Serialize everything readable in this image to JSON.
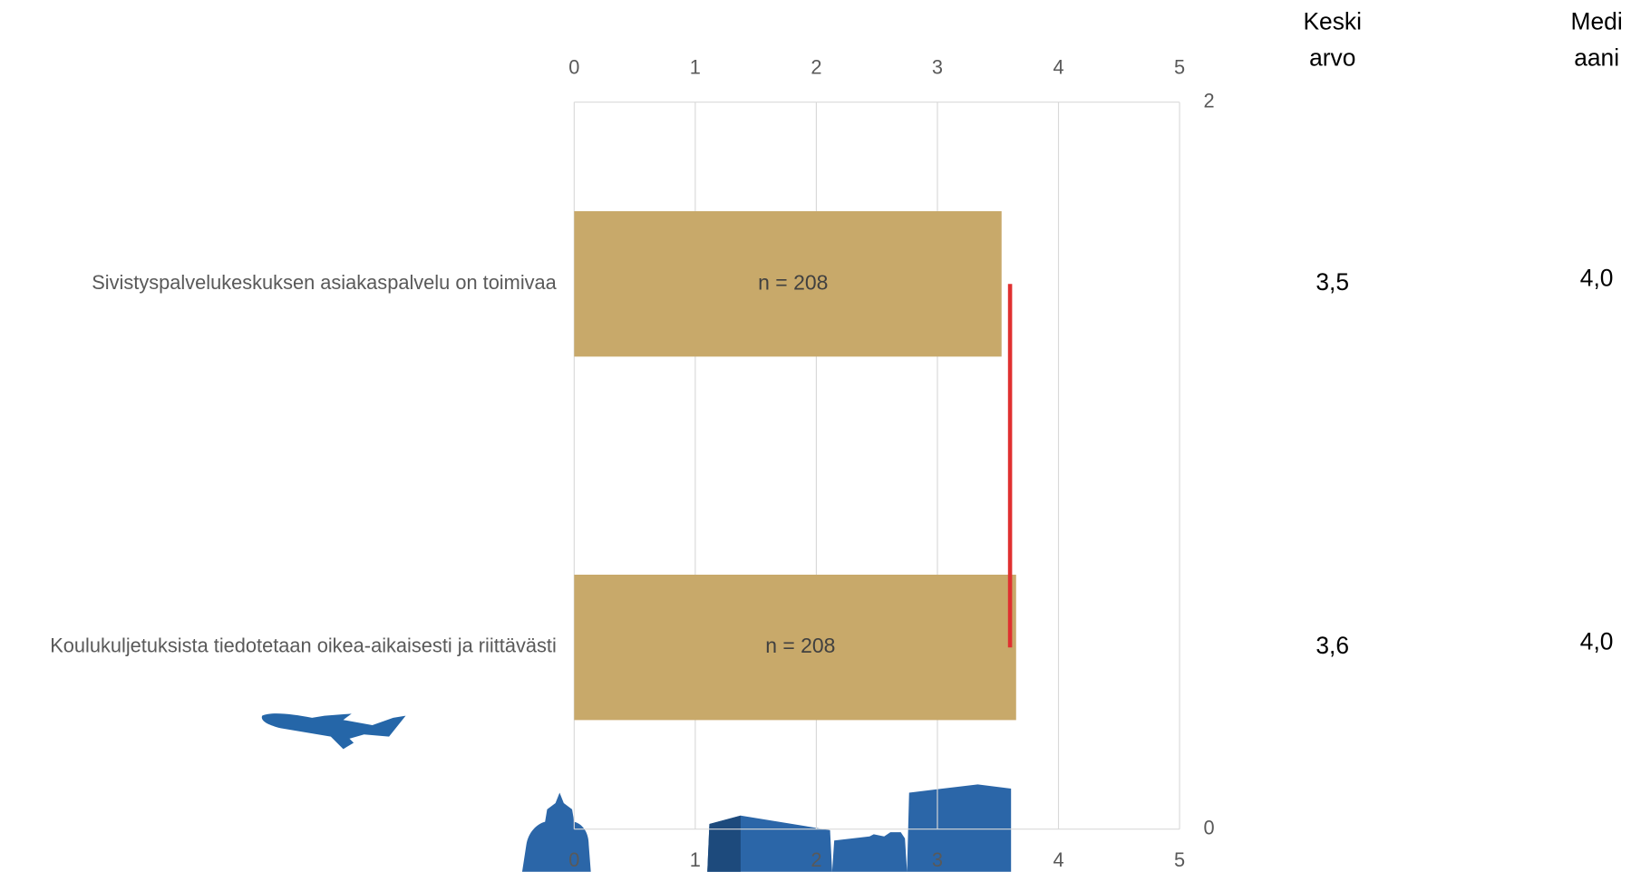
{
  "chart_data": {
    "type": "bar",
    "orientation": "horizontal",
    "categories": [
      "Sivistyspalvelukeskuksen asiakaspalvelu on toimivaa",
      "Koulukuljetuksista tiedotetaan oikea-aikaisesti ja riittävästi"
    ],
    "values": [
      3.53,
      3.65
    ],
    "bar_texts": [
      "n = 208",
      "n = 208"
    ],
    "color": "#c8a96a",
    "xlim": [
      0,
      5
    ],
    "xticks": [
      0,
      1,
      2,
      3,
      4,
      5
    ],
    "y2lim": [
      0,
      2
    ],
    "y2ticks": [
      0,
      2
    ],
    "grid": true,
    "line_series": {
      "color": "#e03030",
      "axis": "y2",
      "x": [
        3.6,
        3.6
      ],
      "values": [
        1.5,
        0.5
      ]
    }
  },
  "table": {
    "headers": [
      [
        "Keski",
        "arvo"
      ],
      [
        "Medi",
        "aani"
      ]
    ],
    "rows": [
      [
        "3,5",
        "4,0"
      ],
      [
        "3,6",
        "4,0"
      ]
    ]
  }
}
